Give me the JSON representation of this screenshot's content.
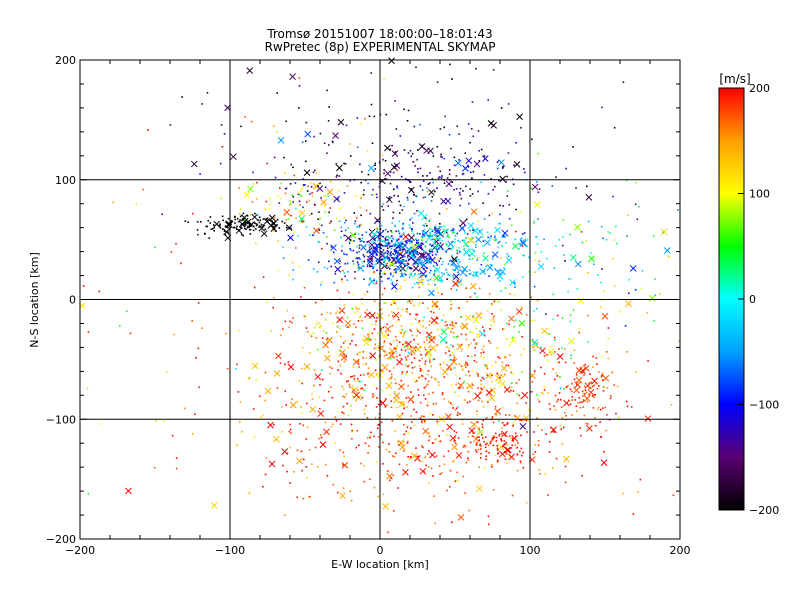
{
  "chart_data": {
    "type": "scatter",
    "title_line1": "Tromsø 20151007 18:00:00–18:01:43",
    "title_line2": "RwPretec (8p) EXPERIMENTAL SKYMAP",
    "xlabel": "E-W location [km]",
    "ylabel": "N-S location [km]",
    "xlim": [
      -200,
      200
    ],
    "ylim": [
      -200,
      200
    ],
    "xticks": [
      -200,
      -100,
      0,
      100,
      200
    ],
    "yticks": [
      -200,
      -100,
      0,
      100,
      200
    ],
    "xtick_labels": [
      "−200",
      "−100",
      "0",
      "100",
      "200"
    ],
    "ytick_labels": [
      "−200",
      "−100",
      "0",
      "100",
      "200"
    ],
    "grid": true,
    "colorbar": {
      "label": "[m/s]",
      "range": [
        -200,
        200
      ],
      "ticks": [
        200,
        100,
        0,
        -100,
        -200
      ],
      "tick_labels": [
        "200",
        "100",
        "0",
        "−100",
        "−200"
      ],
      "colormap": [
        "#000000",
        "#5a0070",
        "#0000ff",
        "#00a0ff",
        "#00ffff",
        "#00ff00",
        "#ffff00",
        "#ffa000",
        "#ff0000"
      ]
    },
    "clusters": [
      {
        "cx": 10,
        "cy": 40,
        "sx": 20,
        "sy": 10,
        "n": 420,
        "v": -110,
        "vs": 40
      },
      {
        "cx": 40,
        "cy": 50,
        "sx": 40,
        "sy": 8,
        "n": 220,
        "v": -10,
        "vs": 40
      },
      {
        "cx": 30,
        "cy": 25,
        "sx": 30,
        "sy": 8,
        "n": 160,
        "v": -40,
        "vs": 20
      },
      {
        "cx": 20,
        "cy": 100,
        "sx": 55,
        "sy": 25,
        "n": 320,
        "v": -150,
        "vs": 55
      },
      {
        "cx": -90,
        "cy": 62,
        "sx": 15,
        "sy": 4,
        "n": 150,
        "v": -200,
        "vs": 10
      },
      {
        "cx": -50,
        "cy": 80,
        "sx": 20,
        "sy": 12,
        "n": 80,
        "v": 120,
        "vs": 50
      },
      {
        "cx": 20,
        "cy": -35,
        "sx": 40,
        "sy": 25,
        "n": 500,
        "v": 160,
        "vs": 45
      },
      {
        "cx": 30,
        "cy": -100,
        "sx": 60,
        "sy": 35,
        "n": 600,
        "v": 175,
        "vs": 35
      },
      {
        "cx": 80,
        "cy": -120,
        "sx": 12,
        "sy": 8,
        "n": 80,
        "v": 195,
        "vs": 6
      },
      {
        "cx": 135,
        "cy": -75,
        "sx": 12,
        "sy": 18,
        "n": 110,
        "v": 185,
        "vs": 15
      },
      {
        "cx": -90,
        "cy": 0,
        "sx": 70,
        "sy": 90,
        "n": 110,
        "v": 150,
        "vs": 60
      },
      {
        "cx": 140,
        "cy": 30,
        "sx": 40,
        "sy": 40,
        "n": 90,
        "v": 10,
        "vs": 90
      },
      {
        "cx": 0,
        "cy": 150,
        "sx": 70,
        "sy": 25,
        "n": 60,
        "v": -180,
        "vs": 25
      },
      {
        "cx": 60,
        "cy": -20,
        "sx": 50,
        "sy": 40,
        "n": 220,
        "v": 100,
        "vs": 60
      }
    ]
  }
}
